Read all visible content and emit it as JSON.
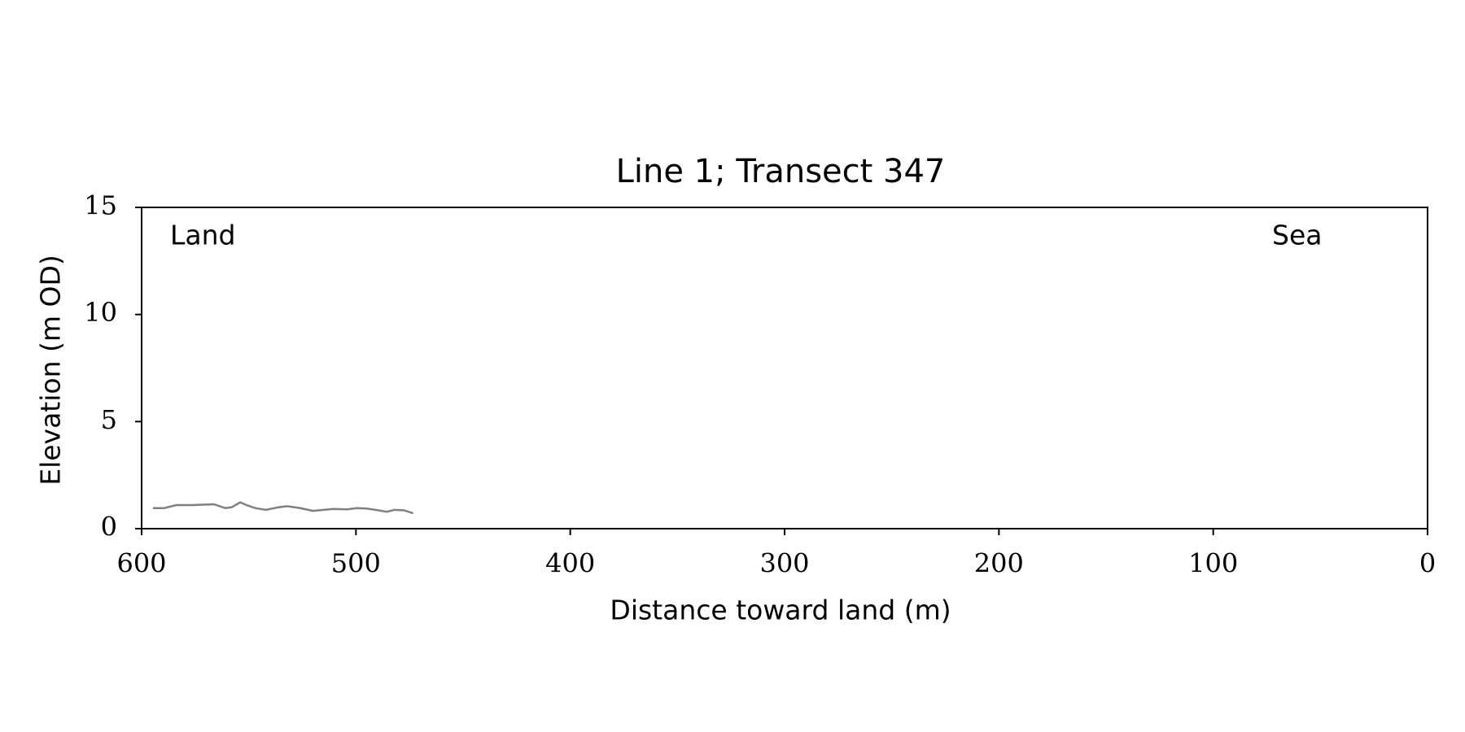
{
  "chart_data": {
    "type": "line",
    "title": "Line 1; Transect 347",
    "xlabel": "Distance toward land (m)",
    "ylabel": "Elevation (m OD)",
    "annotations": [
      "Land",
      "Sea"
    ],
    "xlim": [
      600,
      0
    ],
    "xticks": [
      600,
      500,
      400,
      300,
      200,
      100,
      0
    ],
    "ylim": [
      0,
      15
    ],
    "yticks": [
      0,
      5,
      10,
      15
    ],
    "series": [
      {
        "color": "#808080",
        "x": [
          594.7,
          589.5,
          583.8,
          576.3,
          566.3,
          561,
          558,
          554,
          551,
          547,
          542,
          536,
          532,
          526,
          520,
          510.6,
          504,
          499.6,
          495,
          490.9,
          485.6,
          482,
          477.7,
          473.3
        ],
        "values": [
          0.96,
          0.96,
          1.1,
          1.1,
          1.14,
          0.96,
          1.0,
          1.23,
          1.1,
          0.96,
          0.88,
          1.0,
          1.05,
          0.96,
          0.83,
          0.92,
          0.9,
          0.96,
          0.94,
          0.88,
          0.79,
          0.88,
          0.86,
          0.72
        ]
      }
    ]
  }
}
